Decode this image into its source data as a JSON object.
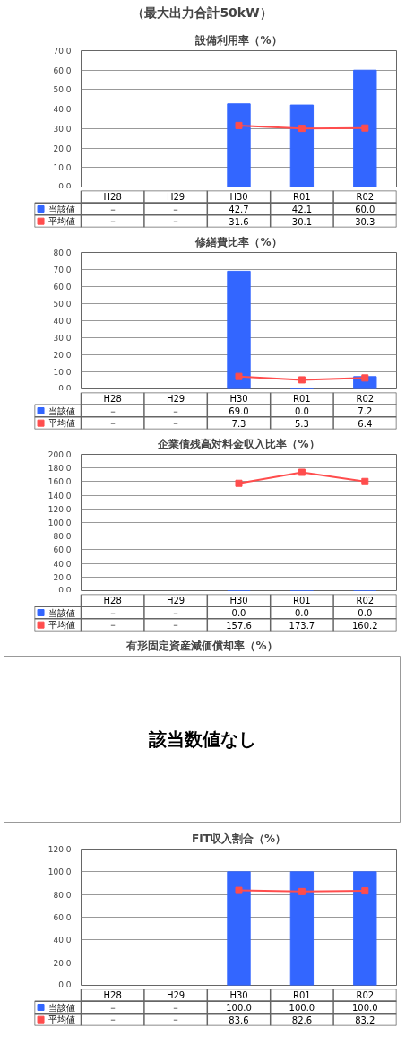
{
  "chart_data": [
    {
      "type": "other",
      "title": "（最大出力合計50kW）"
    },
    {
      "type": "bar",
      "title": "設備利用率（%）",
      "categories": [
        "H28",
        "H29",
        "H30",
        "R01",
        "R02"
      ],
      "ylim": [
        0,
        70
      ],
      "yticks": [
        {
          "value": 0,
          "label": "0.0"
        },
        {
          "value": 10,
          "label": "10.0"
        },
        {
          "value": 20,
          "label": "20.0"
        },
        {
          "value": 30,
          "label": "30.0"
        },
        {
          "value": 40,
          "label": "40.0"
        },
        {
          "value": 50,
          "label": "50.0"
        },
        {
          "value": 60,
          "label": "60.0"
        },
        {
          "value": 70,
          "label": "70.0"
        }
      ],
      "grid": "y",
      "legend": "bottom",
      "marker": "square",
      "series": [
        {
          "name": "当該値",
          "color": "#3366ff",
          "values": [
            null,
            null,
            42.7,
            42.1,
            60.0
          ],
          "value_labels": [
            "－",
            "－",
            "42.7",
            "42.1",
            "60.0"
          ]
        },
        {
          "name": "平均値",
          "type": "line",
          "color": "#ff4d4d",
          "values": [
            null,
            null,
            31.6,
            30.1,
            30.3
          ],
          "value_labels": [
            "－",
            "－",
            "31.6",
            "30.1",
            "30.3"
          ]
        }
      ]
    },
    {
      "type": "bar",
      "title": "修繕費比率（%）",
      "categories": [
        "H28",
        "H29",
        "H30",
        "R01",
        "R02"
      ],
      "ylim": [
        0,
        80
      ],
      "yticks": [
        {
          "value": 0,
          "label": "0.0"
        },
        {
          "value": 10,
          "label": "10.0"
        },
        {
          "value": 20,
          "label": "20.0"
        },
        {
          "value": 30,
          "label": "30.0"
        },
        {
          "value": 40,
          "label": "40.0"
        },
        {
          "value": 50,
          "label": "50.0"
        },
        {
          "value": 60,
          "label": "60.0"
        },
        {
          "value": 70,
          "label": "70.0"
        },
        {
          "value": 80,
          "label": "80.0"
        }
      ],
      "grid": "y",
      "legend": "bottom",
      "marker": "square",
      "series": [
        {
          "name": "当該値",
          "color": "#3366ff",
          "values": [
            null,
            null,
            69.0,
            0.0,
            7.2
          ],
          "value_labels": [
            "－",
            "－",
            "69.0",
            "0.0",
            "7.2"
          ]
        },
        {
          "name": "平均値",
          "type": "line",
          "color": "#ff4d4d",
          "values": [
            null,
            null,
            7.3,
            5.3,
            6.4
          ],
          "value_labels": [
            "－",
            "－",
            "7.3",
            "5.3",
            "6.4"
          ]
        }
      ]
    },
    {
      "type": "bar",
      "title": "企業債残高対料金収入比率（%）",
      "categories": [
        "H28",
        "H29",
        "H30",
        "R01",
        "R02"
      ],
      "ylim": [
        0,
        200
      ],
      "yticks": [
        {
          "value": 0,
          "label": "0.0"
        },
        {
          "value": 20,
          "label": "20.0"
        },
        {
          "value": 40,
          "label": "40.0"
        },
        {
          "value": 60,
          "label": "60.0"
        },
        {
          "value": 80,
          "label": "80.0"
        },
        {
          "value": 100,
          "label": "100.0"
        },
        {
          "value": 120,
          "label": "120.0"
        },
        {
          "value": 140,
          "label": "140.0"
        },
        {
          "value": 160,
          "label": "160.0"
        },
        {
          "value": 180,
          "label": "180.0"
        },
        {
          "value": 200,
          "label": "200.0"
        }
      ],
      "grid": "y",
      "legend": "bottom",
      "marker": "square",
      "series": [
        {
          "name": "当該値",
          "color": "#3366ff",
          "values": [
            null,
            null,
            0.0,
            0.0,
            0.0
          ],
          "value_labels": [
            "－",
            "－",
            "0.0",
            "0.0",
            "0.0"
          ]
        },
        {
          "name": "平均値",
          "type": "line",
          "color": "#ff4d4d",
          "values": [
            null,
            null,
            157.6,
            173.7,
            160.2
          ],
          "value_labels": [
            "－",
            "－",
            "157.6",
            "173.7",
            "160.2"
          ]
        }
      ]
    },
    {
      "type": "other",
      "title": "有形固定資産減価償却率（%）",
      "annotations": [
        "該当数値なし"
      ]
    },
    {
      "type": "bar",
      "title": "FIT収入割合（%）",
      "categories": [
        "H28",
        "H29",
        "H30",
        "R01",
        "R02"
      ],
      "ylim": [
        0,
        120
      ],
      "yticks": [
        {
          "value": 0,
          "label": "0.0"
        },
        {
          "value": 20,
          "label": "20.0"
        },
        {
          "value": 40,
          "label": "40.0"
        },
        {
          "value": 60,
          "label": "60.0"
        },
        {
          "value": 80,
          "label": "80.0"
        },
        {
          "value": 100,
          "label": "100.0"
        },
        {
          "value": 120,
          "label": "120.0"
        }
      ],
      "grid": "y",
      "legend": "bottom",
      "marker": "square",
      "series": [
        {
          "name": "当該値",
          "color": "#3366ff",
          "values": [
            null,
            null,
            100.0,
            100.0,
            100.0
          ],
          "value_labels": [
            "－",
            "－",
            "100.0",
            "100.0",
            "100.0"
          ]
        },
        {
          "name": "平均値",
          "type": "line",
          "color": "#ff4d4d",
          "values": [
            null,
            null,
            83.6,
            82.6,
            83.2
          ],
          "value_labels": [
            "－",
            "－",
            "83.6",
            "82.6",
            "83.2"
          ]
        }
      ]
    }
  ]
}
